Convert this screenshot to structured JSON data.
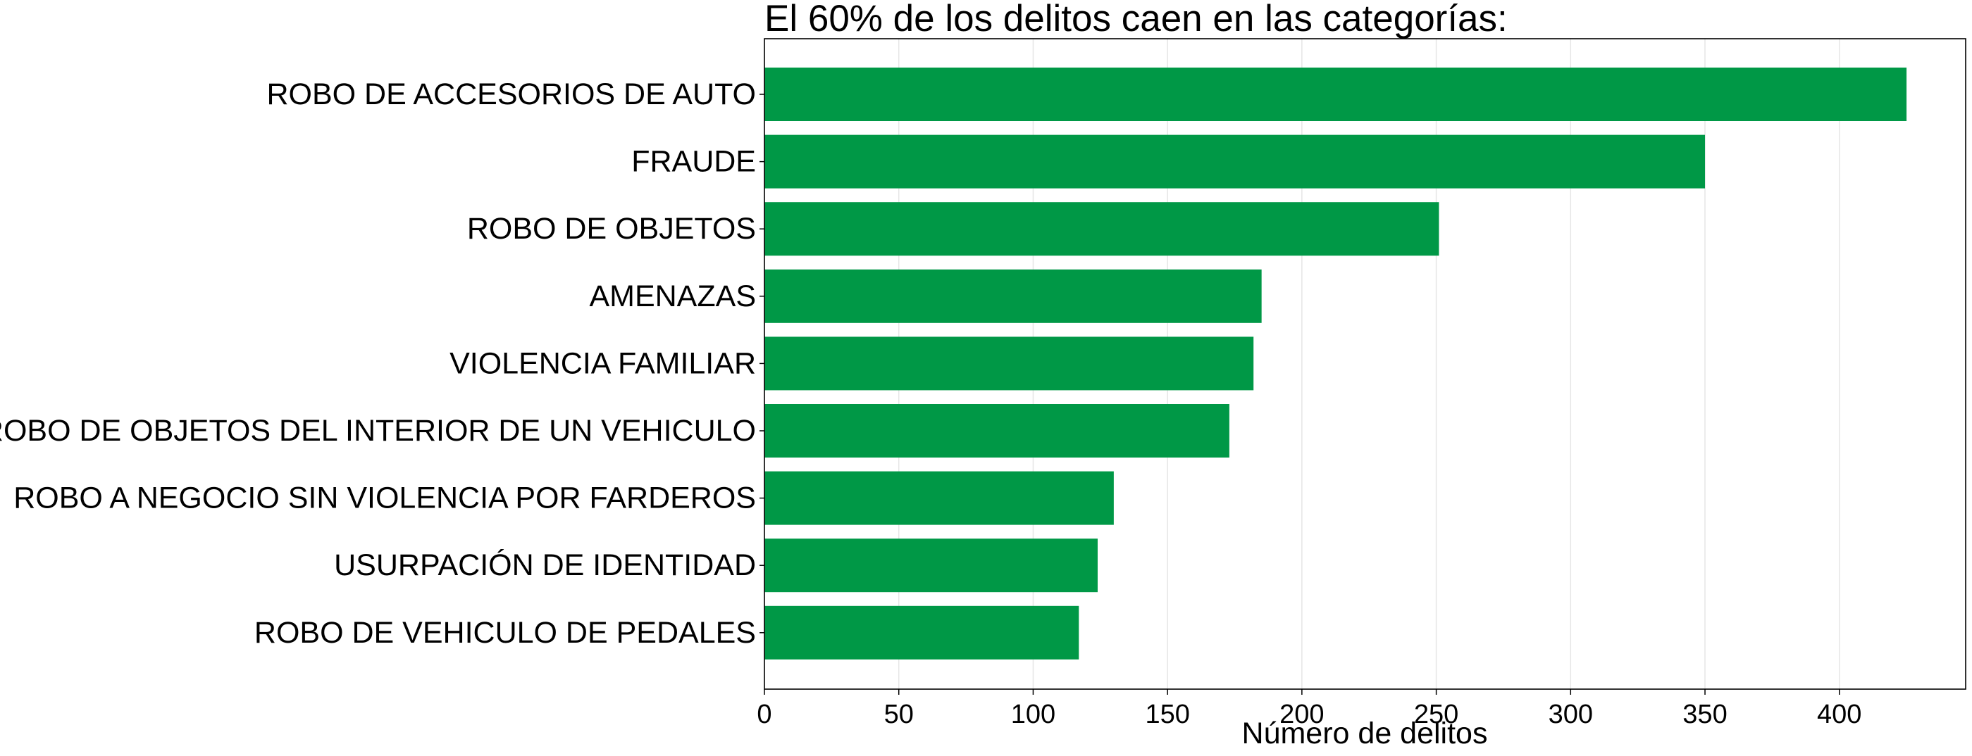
{
  "chart_data": {
    "type": "bar",
    "orientation": "horizontal",
    "title": "El 60% de los delitos caen en las categorías:",
    "xlabel": "Número de delitos",
    "ylabel": "",
    "categories": [
      "ROBO DE ACCESORIOS DE AUTO",
      "FRAUDE",
      "ROBO DE OBJETOS",
      "AMENAZAS",
      "VIOLENCIA FAMILIAR",
      "ROBO DE OBJETOS DEL INTERIOR DE UN VEHICULO",
      "ROBO A NEGOCIO SIN VIOLENCIA POR FARDEROS",
      "USURPACIÓN DE IDENTIDAD",
      "ROBO DE VEHICULO DE PEDALES"
    ],
    "values": [
      425,
      350,
      251,
      185,
      182,
      173,
      130,
      124,
      117
    ],
    "xlim": [
      0,
      447
    ],
    "xticks": [
      0,
      50,
      100,
      150,
      200,
      250,
      300,
      350,
      400
    ],
    "xtick_labels": [
      "0",
      "50",
      "100",
      "150",
      "200",
      "250",
      "300",
      "350",
      "400"
    ],
    "grid": "vertical",
    "bar_color": "#009846",
    "grid_color": "#e6e6e6",
    "axis_color": "#000000"
  }
}
